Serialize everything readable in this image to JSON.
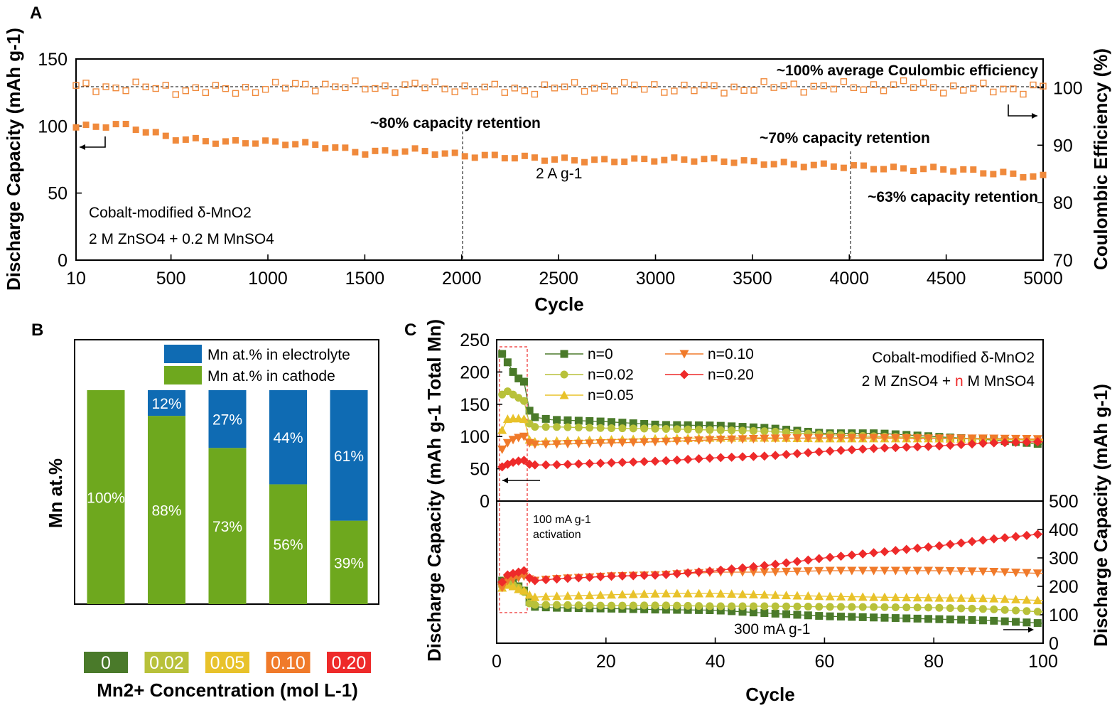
{
  "chart_data": [
    {
      "panel": "A",
      "type": "scatter",
      "xlabel": "Cycle",
      "ylabel": "Discharge Capacity (mAh g-1)",
      "y2label": "Coulombic Efficiency (%)",
      "xlim": [
        10,
        5000
      ],
      "ylim": [
        0,
        150
      ],
      "y2lim": [
        70,
        105
      ],
      "xticks": [
        "10",
        "500",
        "1000",
        "1500",
        "2000",
        "2500",
        "3000",
        "3500",
        "4000",
        "4500",
        "5000"
      ],
      "yticks": [
        "0",
        "50",
        "100",
        "150"
      ],
      "y2ticks": [
        "70",
        "80",
        "90",
        "100"
      ],
      "annotations": {
        "ce": "~100% average Coulombic efficiency",
        "r80": "~80% capacity retention",
        "r70": "~70% capacity retention",
        "r63": "~63% capacity retention",
        "rate": "2 A g-1",
        "mat1": "Cobalt-modified δ-MnO2",
        "mat2": "2 M ZnSO4 + 0.2 M MnSO4"
      },
      "series": [
        {
          "axis": "left",
          "color": "#f08a3c",
          "marker": "filled-square",
          "x": [
            10,
            250,
            500,
            750,
            1000,
            1250,
            1500,
            1750,
            2000,
            2250,
            2500,
            2750,
            3000,
            3250,
            3500,
            3750,
            4000,
            4250,
            4500,
            4750,
            5000
          ],
          "values": [
            99,
            101,
            91,
            88,
            88,
            86,
            80,
            82,
            78,
            77,
            75,
            74,
            75,
            75,
            73,
            71,
            70,
            68,
            68,
            65,
            62
          ]
        },
        {
          "axis": "right",
          "color": "#f08a3c",
          "marker": "open-square",
          "x": [
            10,
            250,
            500,
            750,
            1000,
            1250,
            1500,
            1750,
            2000,
            2250,
            2500,
            2750,
            3000,
            3250,
            3500,
            3750,
            4000,
            4250,
            4500,
            4750,
            5000
          ],
          "values": [
            100,
            100.2,
            99.8,
            99.5,
            100,
            100.5,
            100,
            100.3,
            100,
            99.6,
            100,
            100.2,
            100,
            99.8,
            100,
            100.3,
            100,
            100.5,
            100,
            99.7,
            100
          ]
        }
      ]
    },
    {
      "panel": "B",
      "type": "bar",
      "ylabel": "Mn at.%",
      "xlabel": "Mn2+ Concentration (mol L-1)",
      "categories": [
        "0",
        "0.02",
        "0.05",
        "0.10",
        "0.20"
      ],
      "category_colors": [
        "#4a7a2a",
        "#b8c13a",
        "#e8c22a",
        "#f07a2a",
        "#ee2a2a"
      ],
      "series": [
        {
          "name": "Mn at.% in cathode",
          "color": "#6ea81e",
          "values": [
            100,
            88,
            73,
            56,
            39
          ],
          "labels": [
            "100%",
            "88%",
            "73%",
            "56%",
            "39%"
          ]
        },
        {
          "name": "Mn at.% in electrolyte",
          "color": "#0f6bb3",
          "values": [
            0,
            12,
            27,
            44,
            61
          ],
          "labels": [
            "",
            "12%",
            "27%",
            "44%",
            "61%"
          ]
        }
      ]
    },
    {
      "panel": "C",
      "type": "line",
      "xlabel": "Cycle",
      "ylabel": "Discharge Capacity (mAh g-1 Total Mn)",
      "y2label": "Discharge Capacity (mAh g-1)",
      "xlim": [
        0,
        100
      ],
      "ylim_top": [
        0,
        250
      ],
      "ylim_bottom": [
        0,
        500
      ],
      "xticks": [
        "0",
        "20",
        "40",
        "60",
        "80",
        "100"
      ],
      "yticks_top": [
        "0",
        "50",
        "100",
        "150",
        "200",
        "250"
      ],
      "yticks_bottom": [
        "0",
        "100",
        "200",
        "300",
        "400",
        "500"
      ],
      "annotations": {
        "activation1": "100 mA g-1",
        "activation2": "activation",
        "rate": "300 mA g-1",
        "mat1": "Cobalt-modified δ-MnO2",
        "mat2a": "2 M ZnSO4 + ",
        "mat2n": "n",
        "mat2b": " M MnSO4"
      },
      "series": [
        {
          "name": "n=0",
          "color": "#4a7a2a",
          "marker": "square",
          "x": [
            1,
            2,
            3,
            4,
            5,
            6,
            7,
            10,
            20,
            30,
            40,
            50,
            60,
            70,
            80,
            90,
            100
          ],
          "top": [
            228,
            215,
            200,
            190,
            185,
            140,
            130,
            126,
            123,
            118,
            117,
            113,
            105,
            105,
            100,
            95,
            88
          ],
          "bottom": [
            220,
            225,
            215,
            200,
            185,
            145,
            128,
            125,
            122,
            118,
            116,
            105,
            95,
            90,
            85,
            80,
            70
          ]
        },
        {
          "name": "n=0.02",
          "color": "#b8c13a",
          "marker": "circle",
          "x": [
            1,
            2,
            3,
            4,
            5,
            6,
            7,
            10,
            20,
            30,
            40,
            50,
            60,
            70,
            80,
            90,
            100
          ],
          "top": [
            165,
            170,
            165,
            160,
            155,
            120,
            115,
            115,
            113,
            112,
            110,
            108,
            103,
            100,
            98,
            96,
            94
          ],
          "bottom": [
            200,
            215,
            205,
            195,
            180,
            140,
            135,
            135,
            132,
            133,
            130,
            130,
            128,
            127,
            125,
            120,
            110
          ]
        },
        {
          "name": "n=0.05",
          "color": "#e8c22a",
          "marker": "triangle-up",
          "x": [
            1,
            2,
            3,
            4,
            5,
            6,
            7,
            10,
            20,
            30,
            40,
            50,
            60,
            70,
            80,
            90,
            100
          ],
          "top": [
            110,
            127,
            128,
            128,
            127,
            95,
            92,
            93,
            95,
            97,
            98,
            98,
            97,
            97,
            97,
            96,
            95
          ],
          "bottom": [
            195,
            205,
            200,
            190,
            185,
            170,
            162,
            165,
            170,
            175,
            175,
            170,
            165,
            162,
            160,
            158,
            150
          ]
        },
        {
          "name": "n=0.10",
          "color": "#f07a2a",
          "marker": "triangle-down",
          "x": [
            1,
            2,
            3,
            4,
            5,
            6,
            7,
            10,
            20,
            30,
            40,
            50,
            60,
            70,
            80,
            90,
            100
          ],
          "top": [
            80,
            90,
            95,
            98,
            100,
            90,
            88,
            88,
            90,
            92,
            95,
            97,
            98,
            98,
            97,
            97,
            96
          ],
          "bottom": [
            195,
            220,
            225,
            230,
            235,
            225,
            220,
            225,
            235,
            240,
            250,
            250,
            255,
            255,
            255,
            252,
            245
          ]
        },
        {
          "name": "n=0.20",
          "color": "#ee2a2a",
          "marker": "diamond",
          "x": [
            1,
            2,
            3,
            4,
            5,
            6,
            7,
            10,
            20,
            30,
            40,
            50,
            60,
            70,
            80,
            90,
            100
          ],
          "top": [
            53,
            57,
            60,
            62,
            63,
            57,
            56,
            56,
            59,
            62,
            67,
            70,
            77,
            82,
            85,
            90,
            92
          ],
          "bottom": [
            215,
            240,
            245,
            250,
            255,
            230,
            220,
            225,
            235,
            240,
            255,
            275,
            300,
            320,
            340,
            365,
            385
          ]
        }
      ]
    }
  ],
  "panel_labels": [
    "A",
    "B",
    "C"
  ]
}
